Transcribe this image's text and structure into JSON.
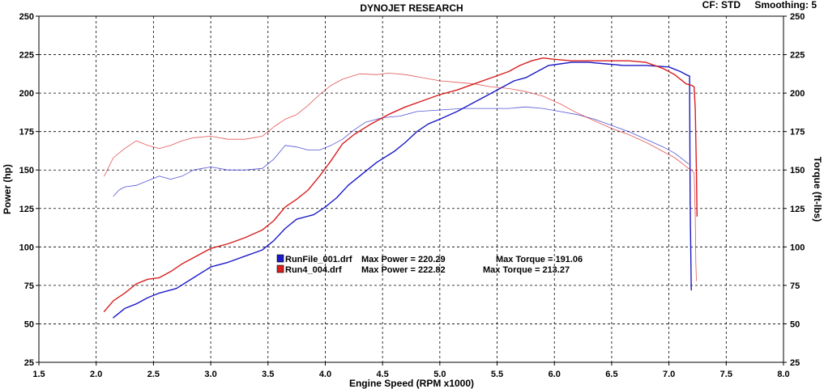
{
  "header": {
    "title": "DYNOJET RESEARCH",
    "cf_label": "CF: STD",
    "smoothing_label": "Smoothing: 5"
  },
  "colors": {
    "background": "#ffffff",
    "grid": "#000000",
    "run1": "#1a1ac8",
    "run2": "#d81e1e"
  },
  "chart_data": {
    "type": "line",
    "title": "DYNOJET RESEARCH",
    "xlabel": "Engine Speed (RPM x1000)",
    "ylabel_left": "Power (hp)",
    "ylabel_right": "Torque (ft-lbs)",
    "xlim": [
      1.5,
      8.0
    ],
    "ylim": [
      25,
      250
    ],
    "x_ticks": [
      "1.5",
      "2.0",
      "2.5",
      "3.0",
      "3.5",
      "4.0",
      "4.5",
      "5.0",
      "5.5",
      "6.0",
      "6.5",
      "7.0",
      "7.5",
      "8.0"
    ],
    "y_ticks": [
      "25",
      "50",
      "75",
      "100",
      "125",
      "150",
      "175",
      "200",
      "225",
      "250"
    ],
    "grid": true,
    "legend": [
      {
        "file": "RunFile_001.drf",
        "max_power_label": "Max Power = 220.29",
        "max_torque_label": "Max Torque = 191.06",
        "color": "#1a1ac8"
      },
      {
        "file": "Run4_004.drf",
        "max_power_label": "Max Power = 222.82",
        "max_torque_label": "Max Torque = 213.27",
        "color": "#d81e1e"
      }
    ],
    "series": [
      {
        "run": "RunFile_001.drf",
        "measure": "Power",
        "color": "#1a1ac8",
        "style": "thick",
        "points": [
          [
            2.15,
            54
          ],
          [
            2.25,
            60
          ],
          [
            2.35,
            63
          ],
          [
            2.45,
            67
          ],
          [
            2.55,
            70
          ],
          [
            2.7,
            73
          ],
          [
            2.85,
            80
          ],
          [
            3.0,
            87
          ],
          [
            3.15,
            90
          ],
          [
            3.3,
            94
          ],
          [
            3.45,
            98
          ],
          [
            3.55,
            104
          ],
          [
            3.65,
            112
          ],
          [
            3.75,
            118
          ],
          [
            3.9,
            121
          ],
          [
            4.0,
            126
          ],
          [
            4.1,
            132
          ],
          [
            4.2,
            140
          ],
          [
            4.35,
            149
          ],
          [
            4.45,
            155
          ],
          [
            4.6,
            162
          ],
          [
            4.7,
            168
          ],
          [
            4.8,
            175
          ],
          [
            4.9,
            180
          ],
          [
            5.0,
            183
          ],
          [
            5.15,
            188
          ],
          [
            5.3,
            194
          ],
          [
            5.45,
            200
          ],
          [
            5.55,
            204
          ],
          [
            5.65,
            208
          ],
          [
            5.75,
            210
          ],
          [
            5.85,
            214
          ],
          [
            5.95,
            218
          ],
          [
            6.05,
            219
          ],
          [
            6.15,
            220
          ],
          [
            6.3,
            220
          ],
          [
            6.45,
            219
          ],
          [
            6.6,
            218
          ],
          [
            6.8,
            218
          ],
          [
            7.0,
            217
          ],
          [
            7.1,
            214
          ],
          [
            7.15,
            212
          ],
          [
            7.18,
            211
          ],
          [
            7.185,
            130
          ],
          [
            7.19,
            100
          ],
          [
            7.195,
            72
          ]
        ]
      },
      {
        "run": "RunFile_001.drf",
        "measure": "Torque",
        "color": "#1a1ac8",
        "style": "thin",
        "points": [
          [
            2.15,
            133
          ],
          [
            2.2,
            137
          ],
          [
            2.25,
            139
          ],
          [
            2.35,
            140
          ],
          [
            2.45,
            143
          ],
          [
            2.55,
            146
          ],
          [
            2.65,
            144
          ],
          [
            2.75,
            146
          ],
          [
            2.85,
            150
          ],
          [
            3.0,
            152
          ],
          [
            3.15,
            150
          ],
          [
            3.3,
            150
          ],
          [
            3.45,
            151
          ],
          [
            3.55,
            157
          ],
          [
            3.65,
            166
          ],
          [
            3.75,
            165
          ],
          [
            3.85,
            163
          ],
          [
            3.95,
            163
          ],
          [
            4.05,
            166
          ],
          [
            4.15,
            170
          ],
          [
            4.25,
            176
          ],
          [
            4.35,
            181
          ],
          [
            4.5,
            184
          ],
          [
            4.65,
            185
          ],
          [
            4.8,
            188
          ],
          [
            5.0,
            189
          ],
          [
            5.2,
            190
          ],
          [
            5.45,
            190
          ],
          [
            5.6,
            190
          ],
          [
            5.75,
            191
          ],
          [
            5.9,
            190
          ],
          [
            6.05,
            188
          ],
          [
            6.2,
            186
          ],
          [
            6.35,
            183
          ],
          [
            6.5,
            179
          ],
          [
            6.65,
            175
          ],
          [
            6.8,
            170
          ],
          [
            6.95,
            165
          ],
          [
            7.05,
            161
          ],
          [
            7.12,
            157
          ],
          [
            7.17,
            154
          ]
        ]
      },
      {
        "run": "Run4_004.drf",
        "measure": "Power",
        "color": "#d81e1e",
        "style": "thick",
        "points": [
          [
            2.07,
            58
          ],
          [
            2.15,
            65
          ],
          [
            2.25,
            70
          ],
          [
            2.35,
            76
          ],
          [
            2.45,
            79
          ],
          [
            2.55,
            80
          ],
          [
            2.65,
            84
          ],
          [
            2.75,
            89
          ],
          [
            2.85,
            93
          ],
          [
            3.0,
            99
          ],
          [
            3.15,
            102
          ],
          [
            3.3,
            106
          ],
          [
            3.45,
            111
          ],
          [
            3.55,
            117
          ],
          [
            3.65,
            126
          ],
          [
            3.75,
            131
          ],
          [
            3.85,
            137
          ],
          [
            3.95,
            146
          ],
          [
            4.05,
            156
          ],
          [
            4.15,
            167
          ],
          [
            4.25,
            173
          ],
          [
            4.4,
            180
          ],
          [
            4.55,
            186
          ],
          [
            4.7,
            191
          ],
          [
            4.85,
            195
          ],
          [
            5.0,
            199
          ],
          [
            5.15,
            202
          ],
          [
            5.3,
            206
          ],
          [
            5.45,
            210
          ],
          [
            5.6,
            214
          ],
          [
            5.7,
            218
          ],
          [
            5.8,
            221
          ],
          [
            5.9,
            222.8
          ],
          [
            6.0,
            222
          ],
          [
            6.15,
            221
          ],
          [
            6.3,
            221
          ],
          [
            6.5,
            221
          ],
          [
            6.65,
            221
          ],
          [
            6.8,
            220
          ],
          [
            6.95,
            216
          ],
          [
            7.05,
            212
          ],
          [
            7.15,
            206
          ],
          [
            7.2,
            205
          ],
          [
            7.22,
            204
          ],
          [
            7.23,
            190
          ],
          [
            7.24,
            150
          ],
          [
            7.245,
            120
          ]
        ]
      },
      {
        "run": "Run4_004.drf",
        "measure": "Torque",
        "color": "#d81e1e",
        "style": "thin",
        "points": [
          [
            2.07,
            146
          ],
          [
            2.15,
            158
          ],
          [
            2.25,
            164
          ],
          [
            2.35,
            169
          ],
          [
            2.45,
            166
          ],
          [
            2.55,
            164
          ],
          [
            2.65,
            166
          ],
          [
            2.75,
            169
          ],
          [
            2.85,
            171
          ],
          [
            3.0,
            172
          ],
          [
            3.15,
            170
          ],
          [
            3.3,
            170
          ],
          [
            3.45,
            172
          ],
          [
            3.55,
            178
          ],
          [
            3.65,
            183
          ],
          [
            3.75,
            186
          ],
          [
            3.85,
            192
          ],
          [
            3.95,
            199
          ],
          [
            4.05,
            205
          ],
          [
            4.15,
            209
          ],
          [
            4.3,
            212.5
          ],
          [
            4.45,
            212
          ],
          [
            4.55,
            213
          ],
          [
            4.7,
            212
          ],
          [
            4.85,
            210
          ],
          [
            5.0,
            208
          ],
          [
            5.15,
            207
          ],
          [
            5.3,
            206
          ],
          [
            5.45,
            204
          ],
          [
            5.6,
            203
          ],
          [
            5.75,
            201
          ],
          [
            5.9,
            198
          ],
          [
            6.05,
            193
          ],
          [
            6.2,
            187
          ],
          [
            6.35,
            182
          ],
          [
            6.5,
            177
          ],
          [
            6.65,
            173
          ],
          [
            6.8,
            168
          ],
          [
            6.95,
            162
          ],
          [
            7.05,
            158
          ],
          [
            7.12,
            154
          ],
          [
            7.17,
            151
          ],
          [
            7.2,
            150
          ],
          [
            7.22,
            148
          ],
          [
            7.23,
            120
          ],
          [
            7.235,
            90
          ],
          [
            7.24,
            78
          ]
        ]
      }
    ]
  }
}
